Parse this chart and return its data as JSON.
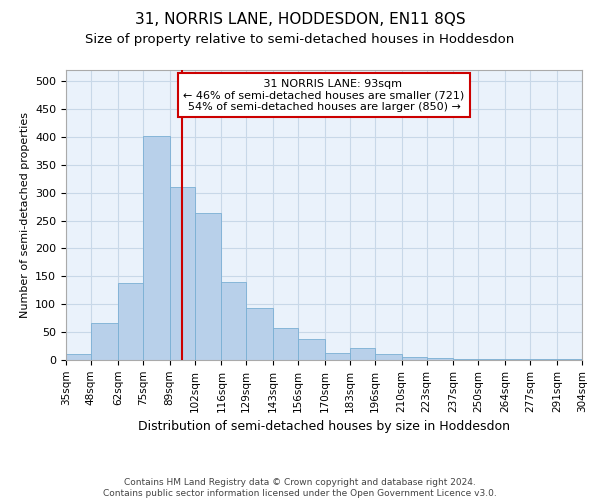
{
  "title": "31, NORRIS LANE, HODDESDON, EN11 8QS",
  "subtitle": "Size of property relative to semi-detached houses in Hoddesdon",
  "xlabel": "Distribution of semi-detached houses by size in Hoddesdon",
  "ylabel": "Number of semi-detached properties",
  "footer_line1": "Contains HM Land Registry data © Crown copyright and database right 2024.",
  "footer_line2": "Contains public sector information licensed under the Open Government Licence v3.0.",
  "annotation_title": "31 NORRIS LANE: 93sqm",
  "annotation_line2": "← 46% of semi-detached houses are smaller (721)",
  "annotation_line3": "54% of semi-detached houses are larger (850) →",
  "bin_edges": [
    35,
    48,
    62,
    75,
    89,
    102,
    116,
    129,
    143,
    156,
    170,
    183,
    196,
    210,
    223,
    237,
    250,
    264,
    277,
    291,
    304
  ],
  "bar_heights": [
    10,
    67,
    138,
    402,
    310,
    263,
    140,
    93,
    57,
    38,
    13,
    22,
    10,
    6,
    4,
    2,
    2,
    1,
    1,
    1
  ],
  "bar_color": "#b8d0ea",
  "bar_edgecolor": "#7aafd4",
  "vline_color": "#cc0000",
  "vline_x": 95.5,
  "ylim": [
    0,
    520
  ],
  "yticks": [
    0,
    50,
    100,
    150,
    200,
    250,
    300,
    350,
    400,
    450,
    500
  ],
  "grid_color": "#c8d8e8",
  "background_color": "#eaf2fb",
  "annotation_box_edgecolor": "#cc0000",
  "annotation_box_facecolor": "#ffffff",
  "title_fontsize": 11,
  "subtitle_fontsize": 9.5,
  "tick_label_fontsize": 7.5,
  "ylabel_fontsize": 8,
  "xlabel_fontsize": 9
}
